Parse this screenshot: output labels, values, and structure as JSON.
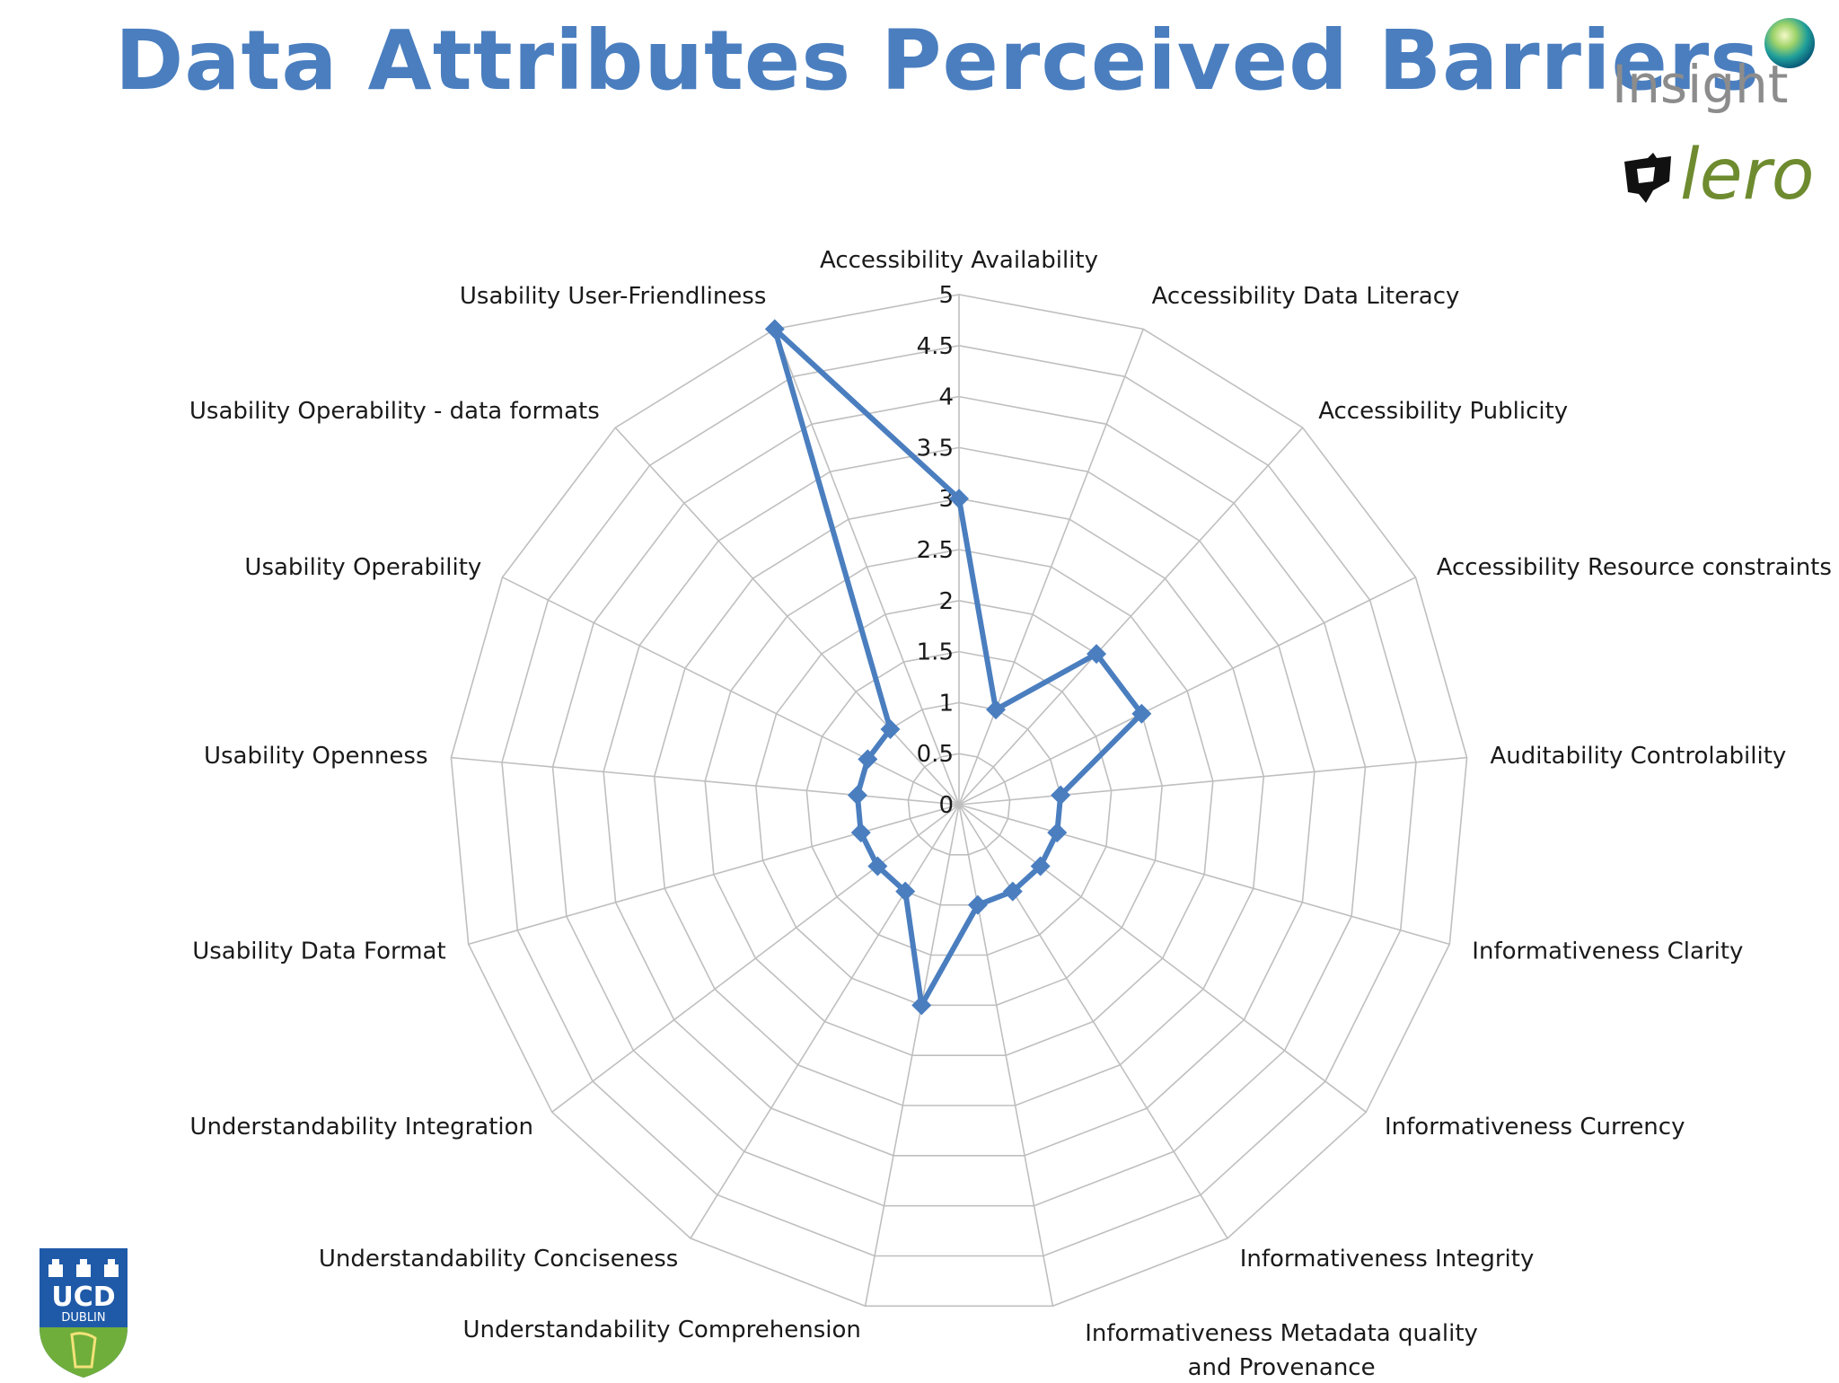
{
  "page": {
    "title": "Data Attributes Perceived Barriers"
  },
  "logos": {
    "insight": "Insight",
    "lero": "lero",
    "ucd": "UCD",
    "ucd_sub": "DUBLIN"
  },
  "colors": {
    "title": "#4a7ebf",
    "series": "#4a7ebf",
    "grid": "#bfbfbf",
    "lero_green": "#6e8b2f",
    "ucd_blue": "#1f5aa8",
    "ucd_green": "#6fae3a"
  },
  "chart_data": {
    "type": "radar",
    "title": "",
    "categories": [
      "Accessibility Availability",
      "Accessibility Data Literacy",
      "Accessibility Publicity",
      "Accessibility Resource constraints",
      "Auditability Controlability",
      "Informativeness Clarity",
      "Informativeness Currency",
      "Informativeness Integrity",
      "Informativeness Metadata quality and Provenance",
      "Understandability Comprehension",
      "Understandability Conciseness",
      "Understandability Integration",
      "Usability Data Format",
      "Usability Openness",
      "Usability Operability",
      "Usability Operability - data  formats",
      "Usability User-Friendliness"
    ],
    "series": [
      {
        "values": [
          3,
          1,
          2,
          2,
          1,
          1,
          1,
          1,
          1,
          2,
          1,
          1,
          1,
          1,
          1,
          1,
          5
        ]
      }
    ],
    "rlim": [
      0,
      5
    ],
    "ticks": [
      "0",
      "0.5",
      "1",
      "1.5",
      "2",
      "2.5",
      "3",
      "3.5",
      "4",
      "4.5",
      "5"
    ],
    "grid": true,
    "marker": "diamond"
  }
}
